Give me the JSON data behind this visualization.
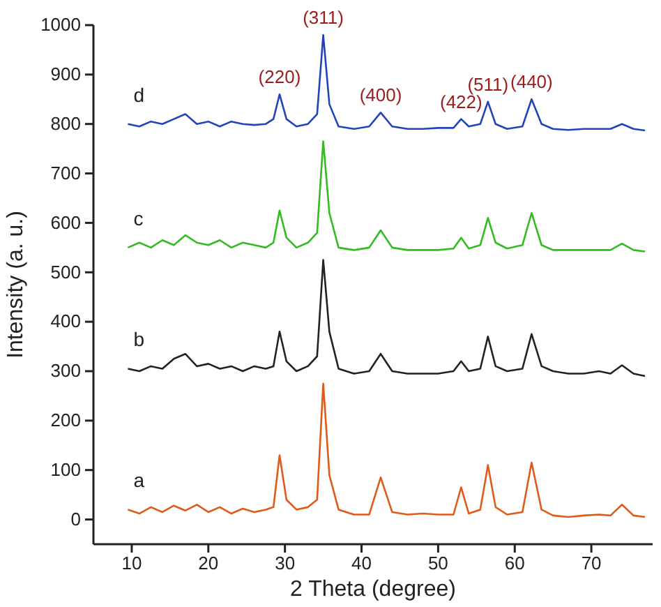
{
  "chart_data": {
    "type": "line",
    "xlabel": "2 Theta (degree)",
    "ylabel": "Intensity (a. u.)",
    "x": [
      9.5,
      11,
      12.5,
      14,
      15.5,
      17,
      18.5,
      20,
      21.5,
      23,
      24.5,
      26,
      27.5,
      28.5,
      29.3,
      30.2,
      31.5,
      33,
      34.2,
      35,
      35.8,
      37,
      39,
      41,
      42.5,
      44,
      46,
      48,
      50,
      52,
      53,
      54,
      55.5,
      56.5,
      57.5,
      59,
      61,
      62.2,
      63.5,
      65,
      67,
      69,
      71,
      72.5,
      74,
      75.5,
      77
    ],
    "series": [
      {
        "name": "a",
        "color": "#e05a1a",
        "values": [
          20,
          12,
          25,
          15,
          28,
          18,
          30,
          15,
          25,
          12,
          22,
          15,
          20,
          25,
          130,
          40,
          20,
          25,
          40,
          275,
          90,
          20,
          10,
          10,
          85,
          15,
          10,
          12,
          10,
          10,
          65,
          12,
          20,
          110,
          25,
          10,
          15,
          115,
          20,
          8,
          5,
          8,
          10,
          8,
          30,
          8,
          5
        ]
      },
      {
        "name": "b",
        "color": "#222222",
        "values": [
          305,
          300,
          310,
          305,
          325,
          335,
          310,
          315,
          305,
          310,
          300,
          310,
          305,
          310,
          380,
          320,
          300,
          310,
          330,
          525,
          380,
          305,
          295,
          300,
          335,
          300,
          295,
          295,
          295,
          300,
          320,
          300,
          305,
          370,
          310,
          300,
          305,
          375,
          310,
          300,
          295,
          295,
          300,
          295,
          312,
          295,
          290
        ]
      },
      {
        "name": "c",
        "color": "#33bb22",
        "values": [
          550,
          560,
          550,
          565,
          555,
          575,
          560,
          555,
          565,
          550,
          560,
          555,
          550,
          560,
          625,
          570,
          550,
          560,
          580,
          765,
          620,
          550,
          545,
          550,
          585,
          550,
          545,
          545,
          545,
          548,
          570,
          548,
          555,
          610,
          560,
          548,
          555,
          620,
          555,
          545,
          545,
          545,
          545,
          545,
          558,
          545,
          542
        ]
      },
      {
        "name": "d",
        "color": "#2244bb",
        "values": [
          800,
          795,
          805,
          800,
          810,
          820,
          800,
          805,
          795,
          805,
          800,
          798,
          800,
          810,
          860,
          810,
          795,
          800,
          820,
          980,
          840,
          795,
          790,
          795,
          823,
          795,
          790,
          790,
          792,
          792,
          810,
          795,
          800,
          845,
          800,
          790,
          795,
          850,
          800,
          790,
          788,
          790,
          790,
          790,
          800,
          790,
          787
        ]
      }
    ],
    "annotations": [
      {
        "text": "(220)",
        "x": 29.3,
        "y": 860
      },
      {
        "text": "(311)",
        "x": 35,
        "y": 980
      },
      {
        "text": "(400)",
        "x": 42.5,
        "y": 823
      },
      {
        "text": "(422)",
        "x": 53,
        "y": 810
      },
      {
        "text": "(511)",
        "x": 56.5,
        "y": 845
      },
      {
        "text": "(440)",
        "x": 62.2,
        "y": 850
      }
    ],
    "xlim": [
      5,
      78
    ],
    "xticks": [
      10,
      20,
      30,
      40,
      50,
      60,
      70
    ],
    "ylim": [
      -50,
      1000
    ],
    "yticks": [
      0,
      100,
      200,
      300,
      400,
      500,
      600,
      700,
      800,
      900,
      1000
    ],
    "grid": false,
    "legend": false
  }
}
